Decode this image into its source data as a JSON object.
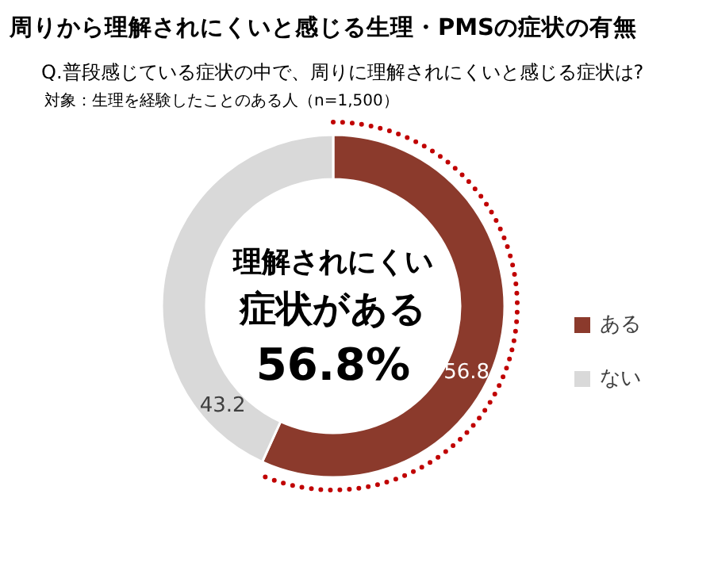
{
  "chart_data": {
    "type": "donut",
    "title": "周りから理解されにくいと感じる生理・PMSの症状の有無",
    "subtitle": "Q.普段感じている症状の中で、周りに理解されにくいと感じる症状は?",
    "categories": [
      "ある",
      "ない"
    ],
    "values": [
      56.8,
      43.2
    ],
    "colors": [
      "#8b3a2c",
      "#d9d9d9"
    ],
    "data_labels": true,
    "legend": "right",
    "annotations": [
      "対象：生理を経験したことのある人（n=1,500）",
      "理解されにくい",
      "症状がある",
      "56.8%"
    ]
  }
}
